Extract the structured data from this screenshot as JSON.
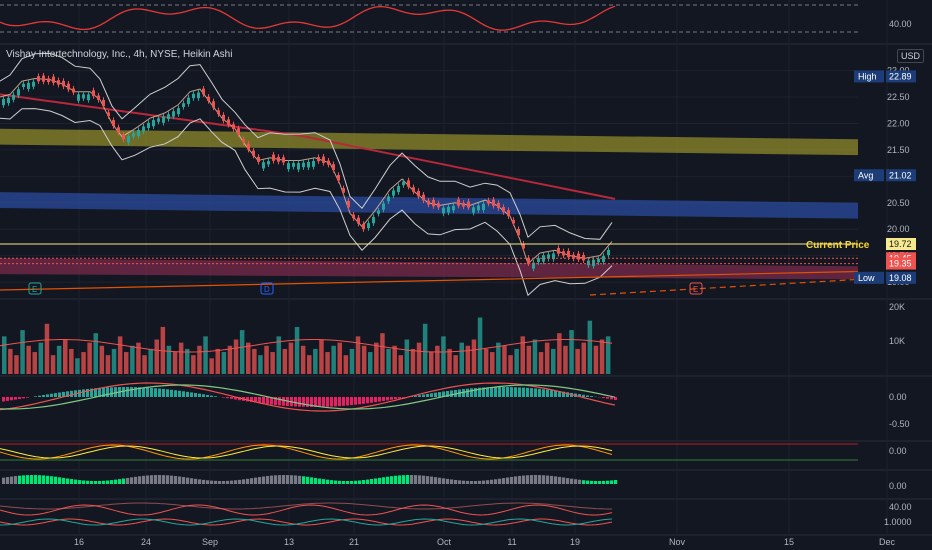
{
  "header": {
    "title": "Vishay Intertechnology, Inc., 4h, NYSE, Heikin Ashi",
    "currency": "USD"
  },
  "price_axis": {
    "ticks": [
      "23.00",
      "22.50",
      "22.00",
      "21.50",
      "21.00",
      "20.50",
      "20.00",
      "19.50",
      "19.00"
    ],
    "badges": [
      {
        "label": "High",
        "value": "22.89",
        "color": "#1c3d78"
      },
      {
        "label": "Avg",
        "value": "21.02",
        "color": "#1c3d78"
      },
      {
        "label": "",
        "value": "19.72",
        "color": "#f7e98e"
      },
      {
        "label": "",
        "value": "19.45",
        "color": "#ef5350"
      },
      {
        "label": "",
        "value": "19.35",
        "color": "#ef5350"
      },
      {
        "label": "Low",
        "value": "19.08",
        "color": "#1c3d78"
      }
    ],
    "current_price_label": "Current Price"
  },
  "pane_labels": {
    "top_rsi": "40.00",
    "volume": [
      "20K",
      "10K"
    ],
    "macd": [
      "0.00",
      "-0.50"
    ],
    "osc1": "0.00",
    "osc2": "0.00",
    "osc3": "40.00",
    "osc4": "1.0000"
  },
  "events": [
    "E",
    "D",
    "E"
  ],
  "time_axis": {
    "labels": [
      "16",
      "24",
      "Sep",
      "13",
      "21",
      "Oct",
      "11",
      "19",
      "Nov",
      "15",
      "Dec"
    ]
  },
  "colors": {
    "background": "#131722",
    "up": "#26a69a",
    "down": "#ef5350",
    "bb": "#cfcfcf",
    "ma_slow": "#b7283b",
    "yellow_zone": "#8f8a2a",
    "blue_zone": "#2a4b9e",
    "red_zone": "#7a2b4b"
  },
  "chart_data": {
    "type": "candlestick",
    "title": "Vishay Intertechnology, Inc., 4h, NYSE, Heikin Ashi",
    "y_range": [
      18.85,
      23.2
    ],
    "x_labels": [
      "16",
      "24",
      "Sep",
      "13",
      "21",
      "Oct",
      "11",
      "19",
      "Nov",
      "15",
      "Dec"
    ],
    "price_path": [
      [
        0,
        22.45
      ],
      [
        10,
        22.5
      ],
      [
        22,
        22.75
      ],
      [
        35,
        22.8
      ],
      [
        50,
        22.78
      ],
      [
        62,
        22.7
      ],
      [
        75,
        22.55
      ],
      [
        90,
        22.55
      ],
      [
        100,
        22.4
      ],
      [
        112,
        21.95
      ],
      [
        122,
        21.7
      ],
      [
        135,
        21.85
      ],
      [
        150,
        22.05
      ],
      [
        165,
        22.15
      ],
      [
        178,
        22.3
      ],
      [
        190,
        22.55
      ],
      [
        200,
        22.6
      ],
      [
        212,
        22.3
      ],
      [
        222,
        22.05
      ],
      [
        235,
        21.85
      ],
      [
        245,
        21.55
      ],
      [
        258,
        21.25
      ],
      [
        270,
        21.3
      ],
      [
        285,
        21.25
      ],
      [
        300,
        21.25
      ],
      [
        315,
        21.3
      ],
      [
        330,
        21.2
      ],
      [
        340,
        20.8
      ],
      [
        350,
        20.25
      ],
      [
        362,
        20.0
      ],
      [
        375,
        20.3
      ],
      [
        390,
        20.7
      ],
      [
        402,
        20.9
      ],
      [
        415,
        20.65
      ],
      [
        428,
        20.45
      ],
      [
        440,
        20.4
      ],
      [
        455,
        20.45
      ],
      [
        470,
        20.4
      ],
      [
        485,
        20.5
      ],
      [
        497,
        20.4
      ],
      [
        510,
        20.2
      ],
      [
        520,
        19.75
      ],
      [
        528,
        19.3
      ],
      [
        540,
        19.5
      ],
      [
        555,
        19.55
      ],
      [
        570,
        19.45
      ],
      [
        585,
        19.4
      ],
      [
        600,
        19.45
      ],
      [
        612,
        19.72
      ]
    ],
    "high": 22.89,
    "average": 21.02,
    "low": 19.08,
    "current_price": 19.72,
    "horizontal_lines": [
      19.72,
      19.45,
      19.35
    ],
    "zones": [
      {
        "name": "",
        "y": [
          [
            21.9,
            21.6
          ],
          [
            21.7,
            21.4
          ]
        ]
      },
      {
        "name": "",
        "y": [
          [
            20.7,
            20.4
          ],
          [
            20.5,
            20.2
          ]
        ]
      },
      {
        "name": "",
        "y": [
          [
            19.45,
            19.15
          ],
          [
            19.3,
            19.05
          ]
        ]
      }
    ],
    "volume": [
      12,
      8,
      6,
      14,
      9,
      7,
      10,
      16,
      6,
      9,
      11,
      8,
      5,
      7,
      10,
      13,
      9,
      6,
      8,
      12,
      7,
      9,
      10,
      6,
      8,
      11,
      15,
      9,
      7,
      10,
      8,
      6,
      9,
      12,
      5,
      8,
      7,
      9,
      11,
      14,
      10,
      8,
      6,
      9,
      7,
      12,
      8,
      10,
      15,
      9,
      6,
      8,
      11,
      7,
      9,
      10,
      6,
      8,
      12,
      9,
      7,
      10,
      13,
      8,
      9,
      6,
      11,
      8,
      10,
      16,
      7,
      9,
      12,
      8,
      6,
      10,
      9,
      11,
      18,
      8,
      7,
      10,
      9,
      6,
      8,
      12,
      9,
      11,
      7,
      10,
      8,
      13,
      9,
      14,
      8,
      10,
      17,
      9,
      11,
      12
    ],
    "volume_range": [
      0,
      22
    ]
  }
}
